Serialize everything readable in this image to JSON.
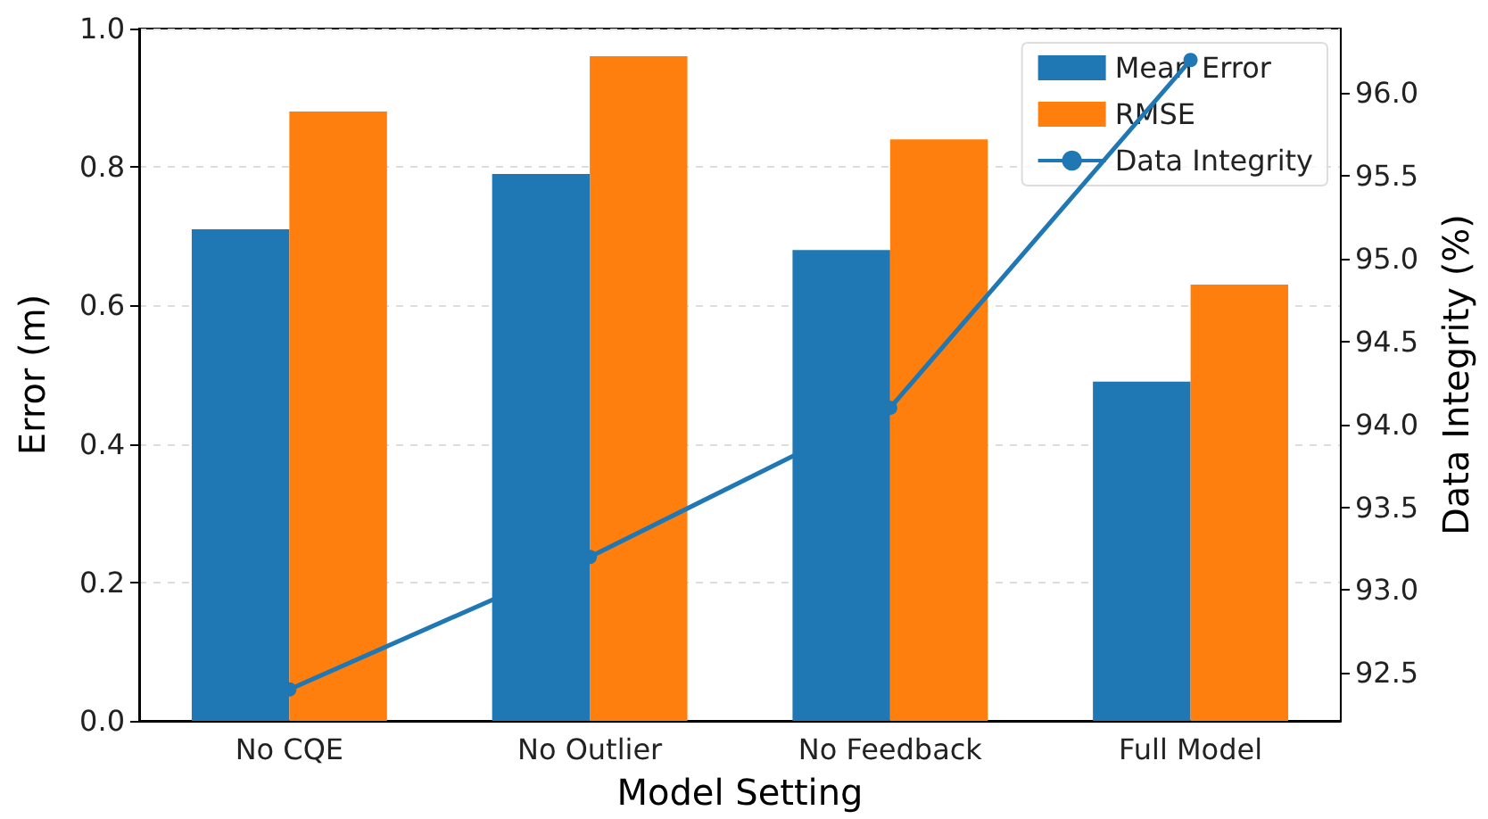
{
  "chart_data": {
    "type": "bar",
    "xlabel": "Model Setting",
    "ylabel": "Error (m)",
    "y2label": "Data Integrity (%)",
    "categories": [
      "No CQE",
      "No Outlier",
      "No Feedback",
      "Full Model"
    ],
    "series": [
      {
        "name": "Mean Error",
        "color": "#1f77b4",
        "values": [
          0.71,
          0.79,
          0.68,
          0.49
        ]
      },
      {
        "name": "RMSE",
        "color": "#ff7f0e",
        "values": [
          0.88,
          0.96,
          0.84,
          0.63
        ]
      },
      {
        "name": "Data Integrity",
        "type": "line",
        "axis": "y2",
        "color": "#1f77b4",
        "marker": "circle",
        "values": [
          92.4,
          93.2,
          94.1,
          96.2
        ]
      }
    ],
    "ylim": [
      0,
      1
    ],
    "yticks": [
      {
        "value": 0,
        "label": "0.0"
      },
      {
        "value": 0.2,
        "label": "0.2"
      },
      {
        "value": 0.4,
        "label": "0.4"
      },
      {
        "value": 0.6,
        "label": "0.6"
      },
      {
        "value": 0.8,
        "label": "0.8"
      },
      {
        "value": 1,
        "label": "1.0"
      }
    ],
    "y2lim": [
      92.21,
      96.39
    ],
    "y2ticks": [
      {
        "value": 92.5,
        "label": "92.5"
      },
      {
        "value": 93,
        "label": "93.0"
      },
      {
        "value": 93.5,
        "label": "93.5"
      },
      {
        "value": 94,
        "label": "94.0"
      },
      {
        "value": 94.5,
        "label": "94.5"
      },
      {
        "value": 95,
        "label": "95.0"
      },
      {
        "value": 95.5,
        "label": "95.5"
      },
      {
        "value": 96,
        "label": "96.0"
      }
    ],
    "grid": "y",
    "legend": "top right"
  }
}
